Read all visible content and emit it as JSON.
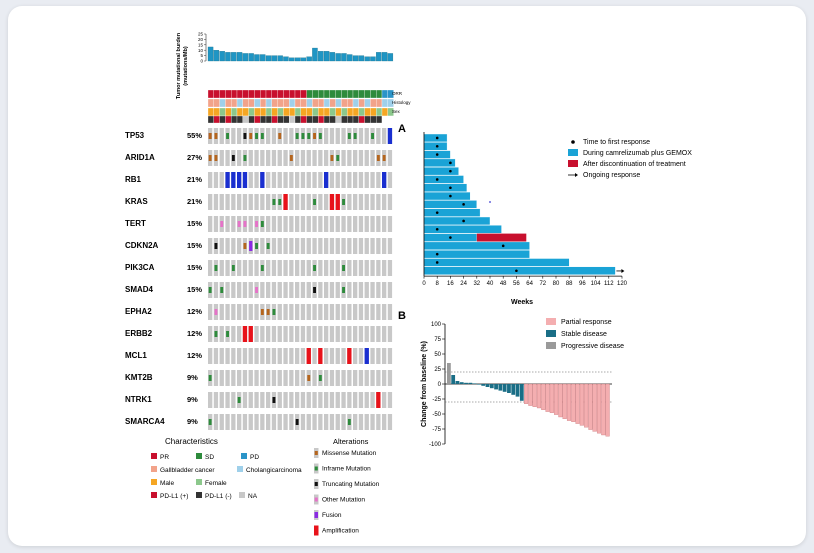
{
  "oncoprint": {
    "tmb": {
      "ylabel": "Tumor mutational burden",
      "ylabel2": "(mutations/Mb)",
      "yticks": [
        0,
        5,
        10,
        15,
        20,
        25
      ],
      "values": [
        13,
        10,
        9,
        8,
        8,
        8,
        7,
        7,
        6,
        6,
        5,
        5,
        5,
        4,
        3,
        3,
        3,
        4,
        12,
        9,
        9,
        8,
        7,
        7,
        6,
        5,
        5,
        4,
        4,
        8,
        8,
        7
      ]
    },
    "annotation_labels": [
      "ORR",
      "Histology",
      "Sex",
      ""
    ],
    "annotation_colors": {
      "orr": [
        "#c8102e",
        "#c8102e",
        "#c8102e",
        "#c8102e",
        "#c8102e",
        "#c8102e",
        "#c8102e",
        "#c8102e",
        "#c8102e",
        "#c8102e",
        "#c8102e",
        "#c8102e",
        "#c8102e",
        "#c8102e",
        "#c8102e",
        "#c8102e",
        "#c8102e",
        "#2e8b3c",
        "#2e8b3c",
        "#2e8b3c",
        "#2e8b3c",
        "#2e8b3c",
        "#2e8b3c",
        "#2e8b3c",
        "#2e8b3c",
        "#2e8b3c",
        "#2e8b3c",
        "#2e8b3c",
        "#2e8b3c",
        "#2e8b3c",
        "#2b94c8",
        "#2b94c8"
      ],
      "histology": [
        "#f2a38a",
        "#f2a38a",
        "#9fd0ea",
        "#f2a38a",
        "#f2a38a",
        "#9fd0ea",
        "#f2a38a",
        "#f2a38a",
        "#9fd0ea",
        "#f2a38a",
        "#9fd0ea",
        "#f2a38a",
        "#f2a38a",
        "#f2a38a",
        "#9fd0ea",
        "#f2a38a",
        "#f2a38a",
        "#9fd0ea",
        "#f2a38a",
        "#f2a38a",
        "#9fd0ea",
        "#f2a38a",
        "#9fd0ea",
        "#f2a38a",
        "#f2a38a",
        "#9fd0ea",
        "#f2a38a",
        "#9fd0ea",
        "#f2a38a",
        "#f2a38a",
        "#9fd0ea",
        "#9fd0ea"
      ],
      "sex": [
        "#f5a623",
        "#f5a623",
        "#8cc88c",
        "#f5a623",
        "#8cc88c",
        "#f5a623",
        "#f5a623",
        "#8cc88c",
        "#f5a623",
        "#f5a623",
        "#8cc88c",
        "#f5a623",
        "#8cc88c",
        "#f5a623",
        "#f5a623",
        "#8cc88c",
        "#f5a623",
        "#f5a623",
        "#8cc88c",
        "#f5a623",
        "#f5a623",
        "#8cc88c",
        "#f5a623",
        "#8cc88c",
        "#f5a623",
        "#f5a623",
        "#8cc88c",
        "#f5a623",
        "#f5a623",
        "#8cc88c",
        "#f5a623",
        "#8cc88c"
      ],
      "pdl1": [
        "#333333",
        "#c8102e",
        "#333333",
        "#c8102e",
        "#333333",
        "#333333",
        "#c8c8c8",
        "#333333",
        "#c8102e",
        "#333333",
        "#333333",
        "#c8102e",
        "#333333",
        "#333333",
        "#c8c8c8",
        "#333333",
        "#c8102e",
        "#333333",
        "#333333",
        "#c8102e",
        "#333333",
        "#333333",
        "#c8c8c8",
        "#333333",
        "#333333",
        "#333333",
        "#c8102e",
        "#333333",
        "#333333",
        "#333333",
        "#ffffff",
        "#ffffff"
      ]
    },
    "genes": [
      {
        "name": "TP53",
        "pct": "55%"
      },
      {
        "name": "ARID1A",
        "pct": "27%"
      },
      {
        "name": "RB1",
        "pct": "21%"
      },
      {
        "name": "KRAS",
        "pct": "21%"
      },
      {
        "name": "TERT",
        "pct": "15%"
      },
      {
        "name": "CDKN2A",
        "pct": "15%"
      },
      {
        "name": "PIK3CA",
        "pct": "15%"
      },
      {
        "name": "SMAD4",
        "pct": "15%"
      },
      {
        "name": "EPHA2",
        "pct": "12%"
      },
      {
        "name": "ERBB2",
        "pct": "12%"
      },
      {
        "name": "MCL1",
        "pct": "12%"
      },
      {
        "name": "KMT2B",
        "pct": "9%"
      },
      {
        "name": "NTRK1",
        "pct": "9%"
      },
      {
        "name": "SMARCA4",
        "pct": "9%"
      }
    ],
    "alterations": [
      [
        "missense",
        "inframe",
        "truncating",
        "missense",
        "inframe",
        "inframe",
        "missense",
        "inframe",
        "inframe",
        "inframe",
        "missense",
        "inframe",
        "inframe",
        "inframe",
        "inframe",
        "inframe",
        "inframe",
        "other",
        "missense",
        "amplification"
      ],
      [
        "missense",
        "missense",
        "truncating",
        "inframe",
        "missense",
        "missense",
        "inframe",
        "missense",
        "missense"
      ],
      [
        "amplification",
        "amplification",
        "amplification",
        "amplification",
        "amplification",
        "amplification",
        "amplification"
      ],
      [
        "inframe",
        "inframe",
        "amplification",
        "inframe",
        "amplification",
        "amplification",
        "inframe"
      ],
      [
        "other",
        "other",
        "other",
        "other",
        "inframe"
      ],
      [
        "truncating",
        "missense",
        "fusion",
        "inframe",
        "inframe"
      ],
      [
        "inframe",
        "inframe",
        "inframe",
        "inframe",
        "inframe"
      ],
      [
        "inframe",
        "inframe",
        "other",
        "truncating",
        "inframe"
      ],
      [
        "other",
        "missense",
        "missense",
        "inframe"
      ],
      [
        "inframe",
        "inframe",
        "amplification",
        "amplification"
      ],
      [
        "amplification",
        "amplification",
        "amplification",
        "amplification"
      ],
      [
        "inframe",
        "missense",
        "inframe"
      ],
      [
        "inframe",
        "truncating",
        "amplification"
      ],
      [
        "inframe",
        "truncating",
        "inframe"
      ]
    ],
    "alteration_positions": [
      [
        1,
        3,
        6,
        7,
        8,
        9,
        12,
        15,
        16,
        17,
        18,
        19,
        24,
        25,
        28,
        31,
        0,
        0,
        0,
        31
      ],
      [
        0,
        1,
        4,
        6,
        14,
        21,
        22,
        29,
        30
      ],
      [
        3,
        4,
        5,
        6,
        9,
        20,
        30
      ],
      [
        11,
        12,
        13,
        18,
        21,
        22,
        23
      ],
      [
        2,
        5,
        6,
        8,
        9
      ],
      [
        1,
        6,
        7,
        8,
        10
      ],
      [
        1,
        4,
        9,
        18,
        23
      ],
      [
        0,
        2,
        8,
        18,
        23
      ],
      [
        1,
        9,
        10,
        11
      ],
      [
        1,
        3,
        6,
        7
      ],
      [
        17,
        19,
        24,
        27
      ],
      [
        0,
        17,
        19
      ],
      [
        5,
        11,
        29
      ],
      [
        0,
        15,
        24
      ]
    ],
    "characteristics": {
      "title": "Characteristics",
      "items": [
        {
          "label": "PR",
          "color": "#c8102e"
        },
        {
          "label": "SD",
          "color": "#2e8b3c"
        },
        {
          "label": "PD",
          "color": "#2b94c8"
        },
        {
          "label": "Gallbladder cancer",
          "color": "#f2a38a"
        },
        {
          "label": "Cholangicarcinoma",
          "color": "#9fd0ea"
        },
        {
          "label": "Male",
          "color": "#f5a623"
        },
        {
          "label": "Female",
          "color": "#8cc88c"
        },
        {
          "label": "PD-L1 (+)",
          "color": "#c8102e"
        },
        {
          "label": "PD-L1 (-)",
          "color": "#333333"
        },
        {
          "label": "NA",
          "color": "#c8c8c8"
        }
      ]
    },
    "alterations_legend": {
      "title": "Alterations",
      "items": [
        {
          "key": "missense",
          "label": "Missense Mutation",
          "color": "#b5651d"
        },
        {
          "key": "inframe",
          "label": "Inframe  Mutation",
          "color": "#2e8b3c"
        },
        {
          "key": "truncating",
          "label": "Truncating  Mutation",
          "color": "#111111"
        },
        {
          "key": "other",
          "label": "Other Mutation",
          "color": "#e573c8"
        },
        {
          "key": "fusion",
          "label": "Fusion",
          "color": "#8a2be2"
        },
        {
          "key": "amplification",
          "label": "Amplification",
          "color": "#e8121a"
        }
      ]
    }
  },
  "chart_data": [
    {
      "type": "bar",
      "panel": "A",
      "orientation": "horizontal",
      "xlabel": "Weeks",
      "xticks": [
        0,
        8,
        16,
        24,
        32,
        40,
        48,
        56,
        64,
        72,
        80,
        88,
        96,
        104,
        112,
        120
      ],
      "xlim": [
        0,
        120
      ],
      "legend": [
        {
          "label": "Time to first response",
          "kind": "dot",
          "color": "#000000"
        },
        {
          "label": "During camrelizumab  plus GEMOX",
          "kind": "box",
          "color": "#1aa3d6"
        },
        {
          "label": "After discontinuation of treatment",
          "kind": "box",
          "color": "#c8102e"
        },
        {
          "label": "Ongoing response",
          "kind": "arrow",
          "color": "#000000"
        }
      ],
      "bars": [
        {
          "during": 14,
          "after": 0,
          "response": 8,
          "ongoing": false
        },
        {
          "during": 14,
          "after": 0,
          "response": 8,
          "ongoing": false
        },
        {
          "during": 16,
          "after": 0,
          "response": 8,
          "ongoing": false
        },
        {
          "during": 19,
          "after": 0,
          "response": 16,
          "ongoing": false
        },
        {
          "during": 21,
          "after": 0,
          "response": 16,
          "ongoing": false
        },
        {
          "during": 24,
          "after": 0,
          "response": 8,
          "ongoing": false
        },
        {
          "during": 26,
          "after": 0,
          "response": 16,
          "ongoing": false
        },
        {
          "during": 28,
          "after": 0,
          "response": 16,
          "ongoing": false
        },
        {
          "during": 32,
          "after": 0,
          "response": 24,
          "ongoing": false
        },
        {
          "during": 34,
          "after": 0,
          "response": 8,
          "ongoing": false
        },
        {
          "during": 40,
          "after": 0,
          "response": 24,
          "ongoing": false
        },
        {
          "during": 47,
          "after": 0,
          "response": 8,
          "ongoing": false
        },
        {
          "during": 32,
          "after": 30,
          "response": 16,
          "ongoing": false
        },
        {
          "during": 64,
          "after": 0,
          "response": 48,
          "ongoing": false
        },
        {
          "during": 64,
          "after": 0,
          "response": 8,
          "ongoing": false
        },
        {
          "during": 88,
          "after": 0,
          "response": 8,
          "ongoing": false
        },
        {
          "during": 116,
          "after": 0,
          "response": 56,
          "ongoing": true
        }
      ]
    },
    {
      "type": "bar",
      "panel": "B",
      "ylabel": "Change from baseline (%)",
      "ylim": [
        -100,
        100
      ],
      "yticks": [
        100,
        75,
        50,
        25,
        0,
        -25,
        -50,
        -75,
        -100
      ],
      "reference_lines": [
        20,
        -30
      ],
      "legend": [
        {
          "label": "Partial response",
          "color": "#f4aeb0"
        },
        {
          "label": "Stable disease",
          "color": "#1a6e86"
        },
        {
          "label": "Progressive disease",
          "color": "#9a9a9a"
        }
      ],
      "values": [
        35,
        15,
        5,
        3,
        2,
        2,
        1,
        -1,
        -3,
        -5,
        -7,
        -9,
        -11,
        -13,
        -15,
        -18,
        -21,
        -28,
        -33,
        -36,
        -38,
        -40,
        -43,
        -46,
        -48,
        -51,
        -55,
        -58,
        -61,
        -63,
        -66,
        -69,
        -72,
        -76,
        -79,
        -82,
        -85,
        -87
      ],
      "responses": [
        "PD",
        "SD",
        "SD",
        "SD",
        "SD",
        "SD",
        "SD",
        "SD",
        "SD",
        "SD",
        "SD",
        "SD",
        "SD",
        "SD",
        "SD",
        "SD",
        "SD",
        "SD",
        "PR",
        "PR",
        "PR",
        "PR",
        "PR",
        "PR",
        "PR",
        "PR",
        "PR",
        "PR",
        "PR",
        "PR",
        "PR",
        "PR",
        "PR",
        "PR",
        "PR",
        "PR",
        "PR",
        "PR"
      ]
    }
  ],
  "labels": {
    "panel_a": "A",
    "panel_b": "B"
  },
  "colors": {
    "grid_cell": "#c8c8c8",
    "card": "#ffffff"
  }
}
